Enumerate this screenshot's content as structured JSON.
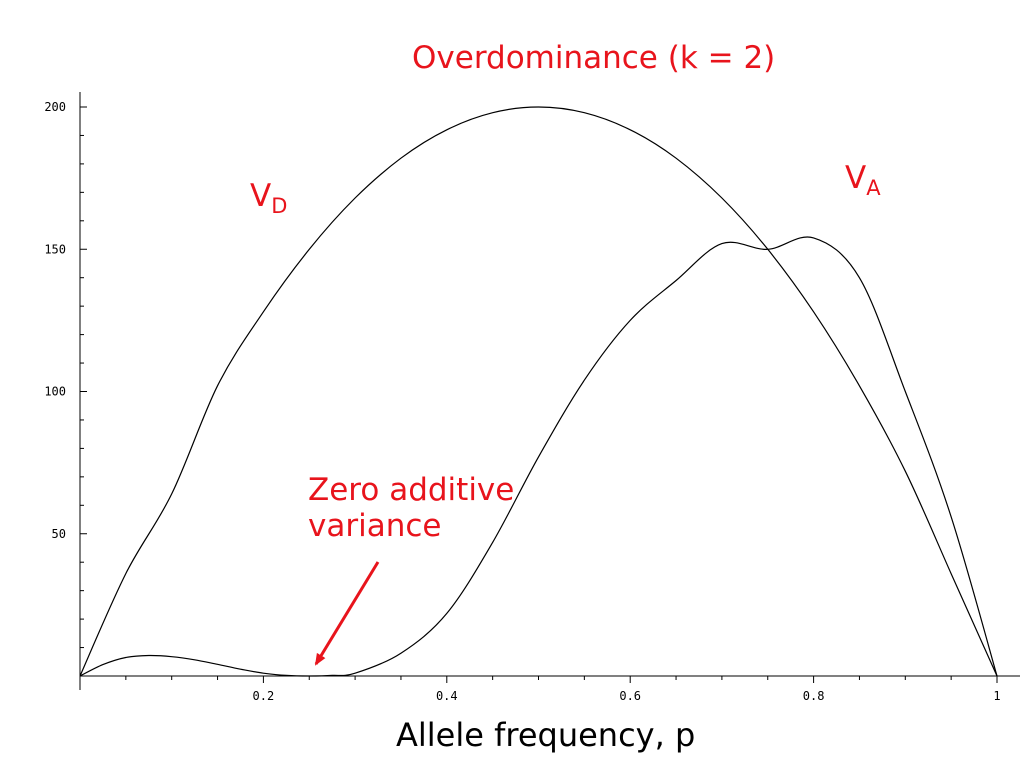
{
  "chart_data": {
    "type": "line",
    "title": "Overdominance (k = 2)",
    "xlabel": "Allele frequency, p",
    "ylabel": "",
    "xlim": [
      0,
      1
    ],
    "ylim": [
      0,
      200
    ],
    "x_ticks": [
      "0.2",
      "0.4",
      "0.6",
      "0.8",
      "1"
    ],
    "y_ticks": [
      "50",
      "100",
      "150",
      "200"
    ],
    "grid": false,
    "series": [
      {
        "name": "V_D",
        "x": [
          0,
          0.05,
          0.1,
          0.15,
          0.2,
          0.25,
          0.3,
          0.35,
          0.4,
          0.45,
          0.5,
          0.55,
          0.6,
          0.65,
          0.7,
          0.75,
          0.8,
          0.85,
          0.9,
          0.95,
          1
        ],
        "values": [
          0,
          36,
          64,
          102,
          128,
          150,
          168,
          182,
          192,
          198,
          200,
          198,
          192,
          182,
          168,
          150,
          128,
          102,
          72,
          36,
          0
        ]
      },
      {
        "name": "V_A",
        "x": [
          0,
          0.025,
          0.05,
          0.075,
          0.1,
          0.125,
          0.15,
          0.175,
          0.2,
          0.225,
          0.25,
          0.275,
          0.3,
          0.35,
          0.4,
          0.45,
          0.5,
          0.55,
          0.6,
          0.65,
          0.7,
          0.75,
          0.8,
          0.85,
          0.9,
          0.95,
          1
        ],
        "values": [
          0,
          4,
          6.5,
          7.2,
          6.8,
          5.7,
          4.1,
          2.4,
          1,
          0.2,
          0,
          0.2,
          1,
          8,
          22,
          47,
          77,
          104,
          125,
          139,
          152,
          150,
          154,
          140,
          100,
          56,
          0
        ]
      }
    ]
  },
  "annotations": {
    "vd_main": "V",
    "vd_sub": "D",
    "va_main": "V",
    "va_sub": "A",
    "zero_line1": "Zero additive",
    "zero_line2": "variance"
  },
  "colors": {
    "annotation": "#e8141c",
    "curve": "#000000"
  }
}
